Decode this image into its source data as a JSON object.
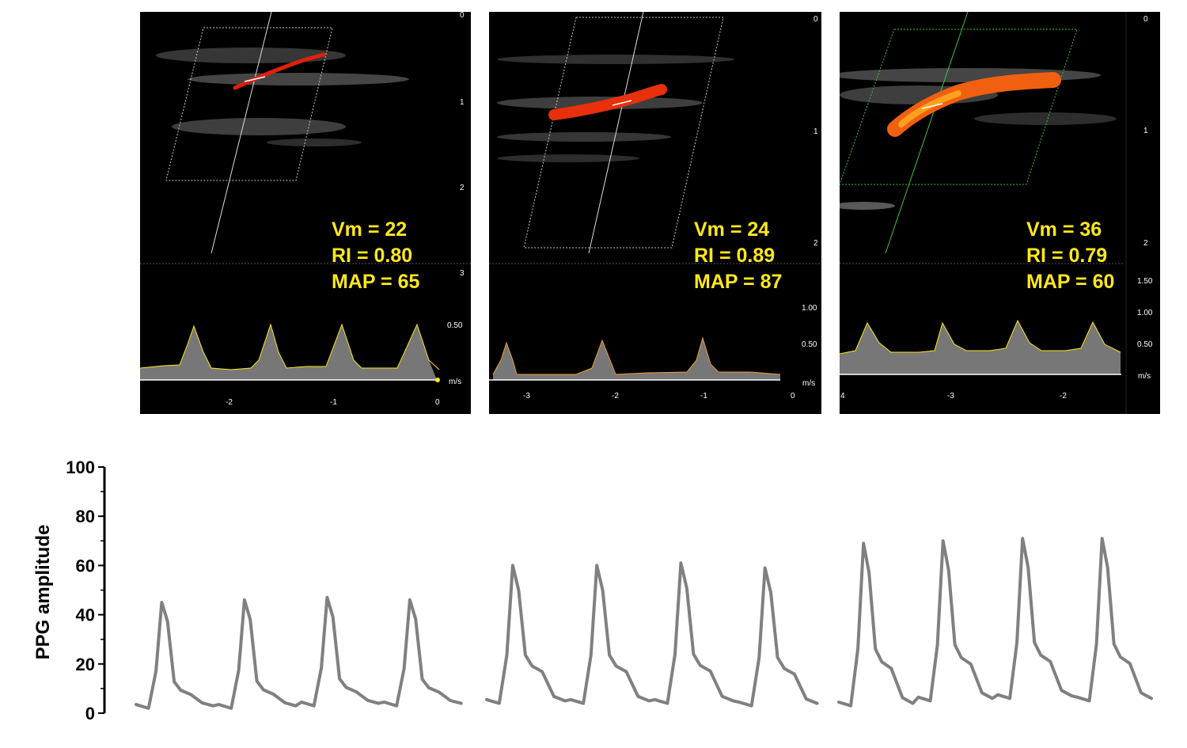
{
  "panels": [
    {
      "metrics": {
        "vm": "Vm = 22",
        "ri": "RI = 0.80",
        "map": "MAP = 65"
      },
      "depth_ticks": [
        "0",
        "1",
        "2",
        "3"
      ],
      "velocity_ticks": [
        "0.50"
      ],
      "velocity_unit": "m/s",
      "time_ticks": [
        "-2",
        "-1",
        "0"
      ],
      "colors": {
        "box": "#c8c8c8",
        "flow": "#e0200a"
      }
    },
    {
      "metrics": {
        "vm": "Vm = 24",
        "ri": "RI = 0.89",
        "map": "MAP = 87"
      },
      "depth_ticks": [
        "0",
        "1",
        "2"
      ],
      "velocity_ticks": [
        "1.00",
        "0.50"
      ],
      "velocity_unit": "m/s",
      "time_ticks": [
        "-3",
        "-2",
        "-1",
        "0"
      ],
      "colors": {
        "box": "#c8c8c8",
        "flow": "#e8300a"
      }
    },
    {
      "metrics": {
        "vm": "Vm = 36",
        "ri": "RI = 0.79",
        "map": "MAP = 60"
      },
      "depth_ticks": [
        "0",
        "1",
        "2"
      ],
      "velocity_ticks": [
        "1.50",
        "1.00",
        "0.50"
      ],
      "velocity_unit": "m/s",
      "time_ticks": [
        "4",
        "-3",
        "-2"
      ],
      "colors": {
        "box": "#3ec43e",
        "flow": "#f06010"
      }
    }
  ],
  "chart_data": {
    "type": "line",
    "ylabel": "PPG amplitude",
    "ylim": [
      0,
      100
    ],
    "yticks": [
      0,
      20,
      40,
      60,
      80,
      100
    ],
    "line_color": "#808080",
    "segments": [
      {
        "peaks": [
          45,
          46,
          47,
          46
        ],
        "troughs": [
          2,
          2,
          3,
          3
        ]
      },
      {
        "peaks": [
          60,
          60,
          61,
          59
        ],
        "troughs": [
          4,
          4,
          4,
          3
        ]
      },
      {
        "peaks": [
          69,
          70,
          71,
          71
        ],
        "troughs": [
          3,
          5,
          6,
          5
        ]
      }
    ]
  }
}
